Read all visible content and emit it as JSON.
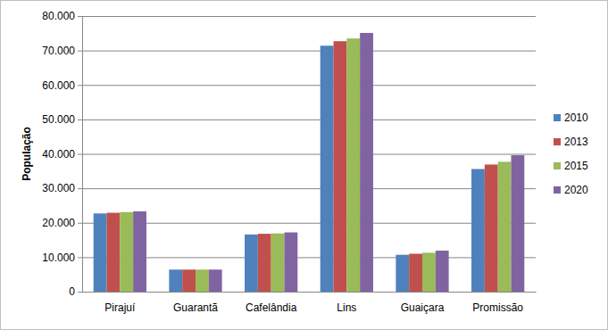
{
  "chart_data": {
    "type": "bar",
    "y_label": "População",
    "categories": [
      "Pirajuí",
      "Guarantã",
      "Cafelândia",
      "Lins",
      "Guaiçara",
      "Promissão"
    ],
    "series": [
      {
        "name": "2010",
        "color": "#4f81bd",
        "values": [
          22700,
          6400,
          16600,
          71400,
          10700,
          35600
        ]
      },
      {
        "name": "2013",
        "color": "#c0504d",
        "values": [
          22900,
          6400,
          16800,
          72700,
          11000,
          36900
        ]
      },
      {
        "name": "2015",
        "color": "#9bbb59",
        "values": [
          23100,
          6400,
          16900,
          73500,
          11300,
          37700
        ]
      },
      {
        "name": "2020",
        "color": "#8064a2",
        "values": [
          23300,
          6400,
          17200,
          75100,
          11900,
          39600
        ]
      }
    ],
    "ylim": [
      0,
      80000
    ],
    "yticks": [
      0,
      {
        "value": 10000,
        "label": "10.000"
      },
      {
        "value": 20000,
        "label": "20.000"
      },
      {
        "value": 30000,
        "label": "30.000"
      },
      {
        "value": 40000,
        "label": "40.000"
      },
      {
        "value": 50000,
        "label": "50.000"
      },
      {
        "value": 60000,
        "label": "60.000"
      },
      {
        "value": 70000,
        "label": "70.000"
      },
      {
        "value": 80000,
        "label": "80.000"
      }
    ],
    "grid": true,
    "legend": "right"
  }
}
